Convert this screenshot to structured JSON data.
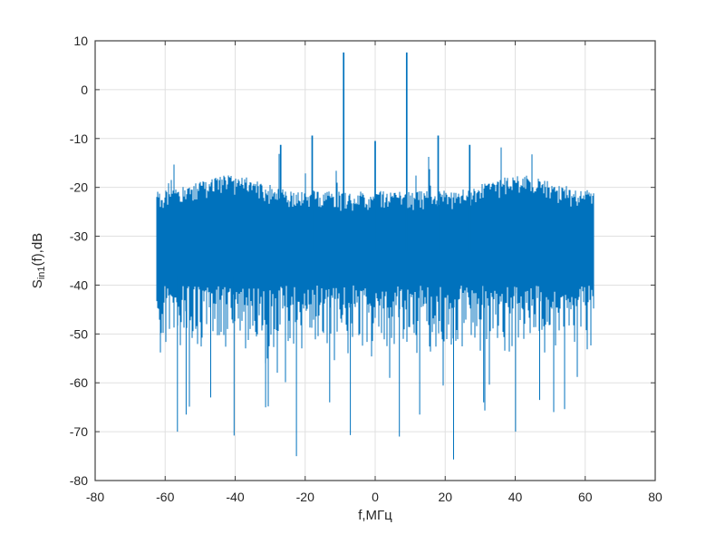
{
  "figure": {
    "background": "#ffffff",
    "kind": "matlab-spectrum-figure"
  },
  "chart_data": {
    "type": "line",
    "title": "",
    "xlabel": "f,МГц",
    "ylabel": {
      "prefix": "S",
      "subscript": "in1",
      "suffix": "(f),dB"
    },
    "ylabel_text": "S_in1(f),dB",
    "xlim": [
      -80,
      80
    ],
    "ylim": [
      -80,
      10
    ],
    "xticks": [
      -80,
      -60,
      -40,
      -20,
      0,
      20,
      40,
      60,
      80
    ],
    "yticks": [
      10,
      0,
      -10,
      -20,
      -30,
      -40,
      -50,
      -60,
      -70,
      -80
    ],
    "grid": true,
    "legend": null,
    "line_color": "#0072BD",
    "axis_color": "#404040",
    "grid_color": "#e0e0e0",
    "label_color": "#262626",
    "signal_band": {
      "f_min": -62.5,
      "f_max": 62.5
    },
    "noise_floor": {
      "top_db": -23.5,
      "body_bottom_db": -40,
      "hump_centers": [
        -41.5,
        41.5
      ],
      "hump_gain_db": 3.2,
      "hump_sigma": 8.5,
      "deepest_null_db": -75.7
    },
    "peaks": [
      {
        "f": -27,
        "level": -11.3
      },
      {
        "f": -18,
        "level": -9.4
      },
      {
        "f": -9,
        "level": 7.6
      },
      {
        "f": 0,
        "level": -10.5
      },
      {
        "f": 9,
        "level": 7.6
      },
      {
        "f": 18,
        "level": -9.4
      },
      {
        "f": 27,
        "level": -11.3
      }
    ],
    "deep_nulls": [
      {
        "f": -56.5,
        "level": -70.0
      },
      {
        "f": -54.0,
        "level": -66.5
      },
      {
        "f": -47.0,
        "level": -63.0
      },
      {
        "f": -40.3,
        "level": -70.8
      },
      {
        "f": -31.3,
        "level": -65.0
      },
      {
        "f": -22.5,
        "level": -75.0
      },
      {
        "f": -13.0,
        "level": -64.0
      },
      {
        "f": -7.1,
        "level": -70.7
      },
      {
        "f": 6.9,
        "level": -71.0
      },
      {
        "f": 12.7,
        "level": -66.5
      },
      {
        "f": 22.4,
        "level": -75.7
      },
      {
        "f": 31.0,
        "level": -64.0
      },
      {
        "f": 40.1,
        "level": -70.0
      },
      {
        "f": 47.0,
        "level": -63.5
      },
      {
        "f": 54.1,
        "level": -65.4
      }
    ]
  }
}
